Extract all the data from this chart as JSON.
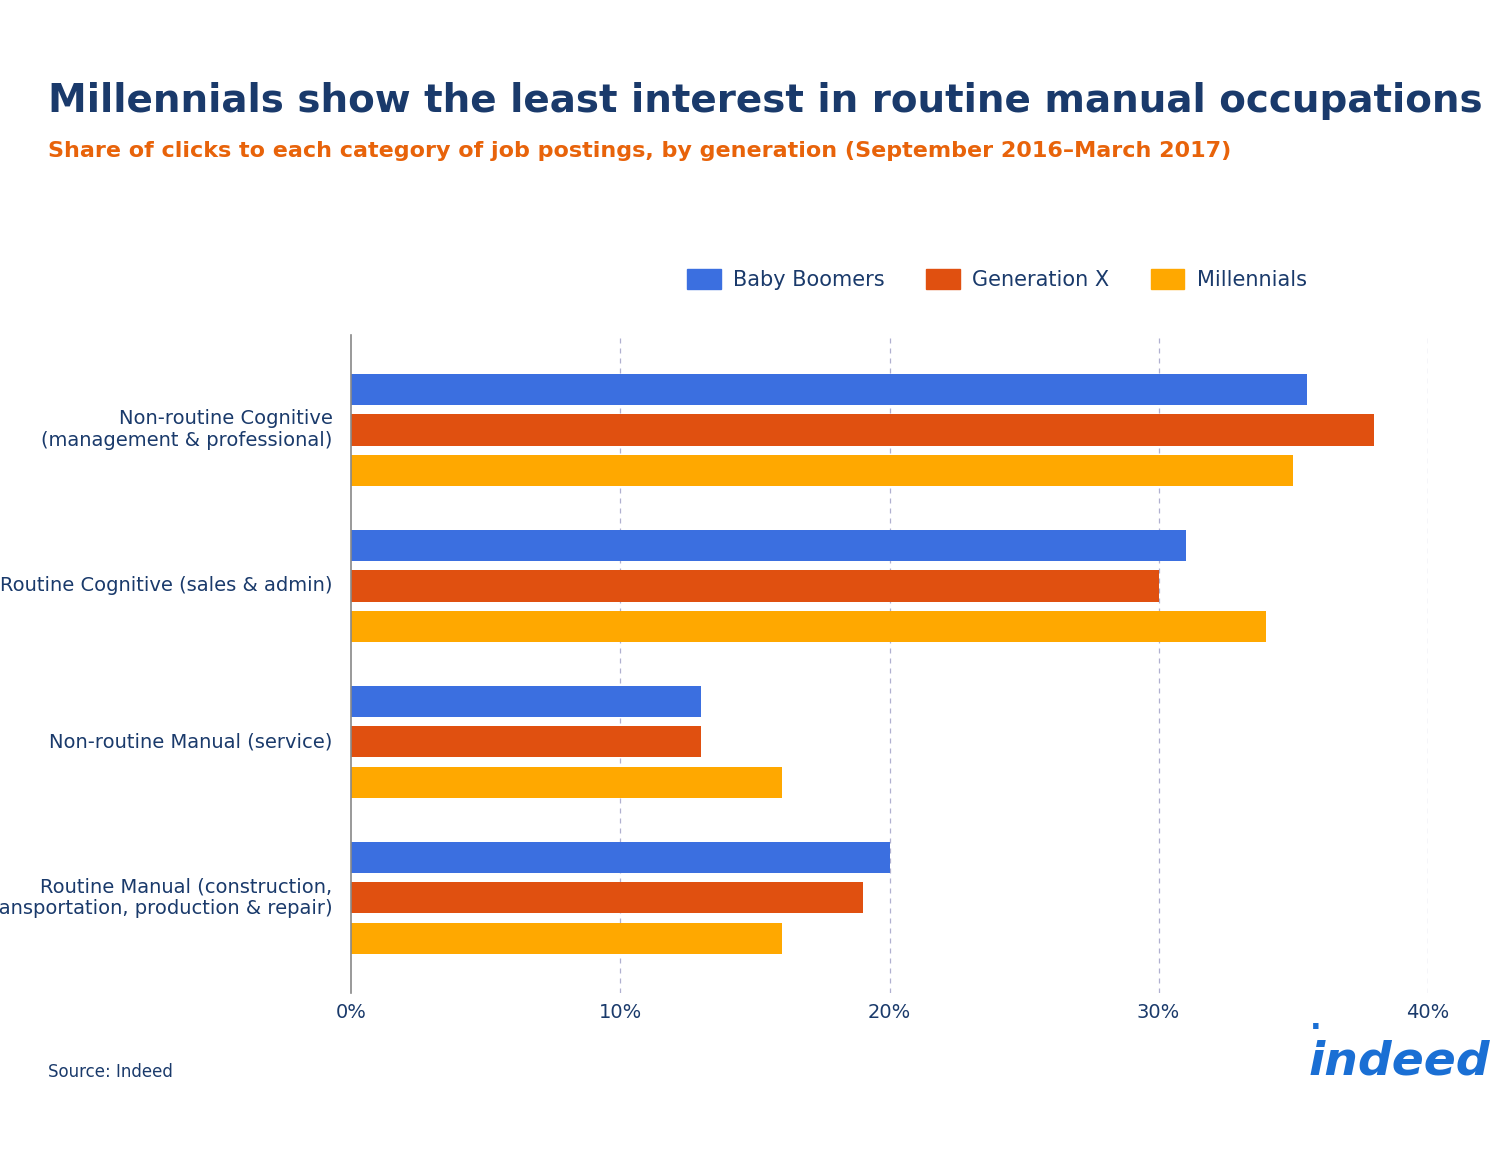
{
  "title": "Millennials show the least interest in routine manual occupations",
  "subtitle": "Share of clicks to each category of job postings, by generation (September 2016–March 2017)",
  "title_color": "#1a3a6b",
  "subtitle_color": "#e8630a",
  "categories": [
    "Non-routine Cognitive\n(management & professional)",
    "Routine Cognitive (sales & admin)",
    "Non-routine Manual (service)",
    "Routine Manual (construction,\ntransportation, production & repair)"
  ],
  "series": {
    "Baby Boomers": [
      0.355,
      0.31,
      0.13,
      0.2
    ],
    "Generation X": [
      0.38,
      0.3,
      0.13,
      0.19
    ],
    "Millennials": [
      0.35,
      0.34,
      0.16,
      0.16
    ]
  },
  "colors": {
    "Baby Boomers": "#3B6FE0",
    "Generation X": "#E05010",
    "Millennials": "#FFA800"
  },
  "legend_order": [
    "Baby Boomers",
    "Generation X",
    "Millennials"
  ],
  "xlim": [
    0,
    0.4
  ],
  "xticks": [
    0.0,
    0.1,
    0.2,
    0.3,
    0.4
  ],
  "xticklabels": [
    "0%",
    "10%",
    "20%",
    "30%",
    "40%"
  ],
  "background_color": "#ffffff",
  "source_text": "Source: Indeed",
  "bar_height": 0.2,
  "title_fontsize": 28,
  "subtitle_fontsize": 16,
  "axis_fontsize": 14,
  "legend_fontsize": 15,
  "ytick_fontsize": 14,
  "source_fontsize": 12,
  "top_bar_color": "#111111",
  "grid_color": "#b0b0d0",
  "left_spine_color": "#888888",
  "indeed_color": "#1a6fd4"
}
